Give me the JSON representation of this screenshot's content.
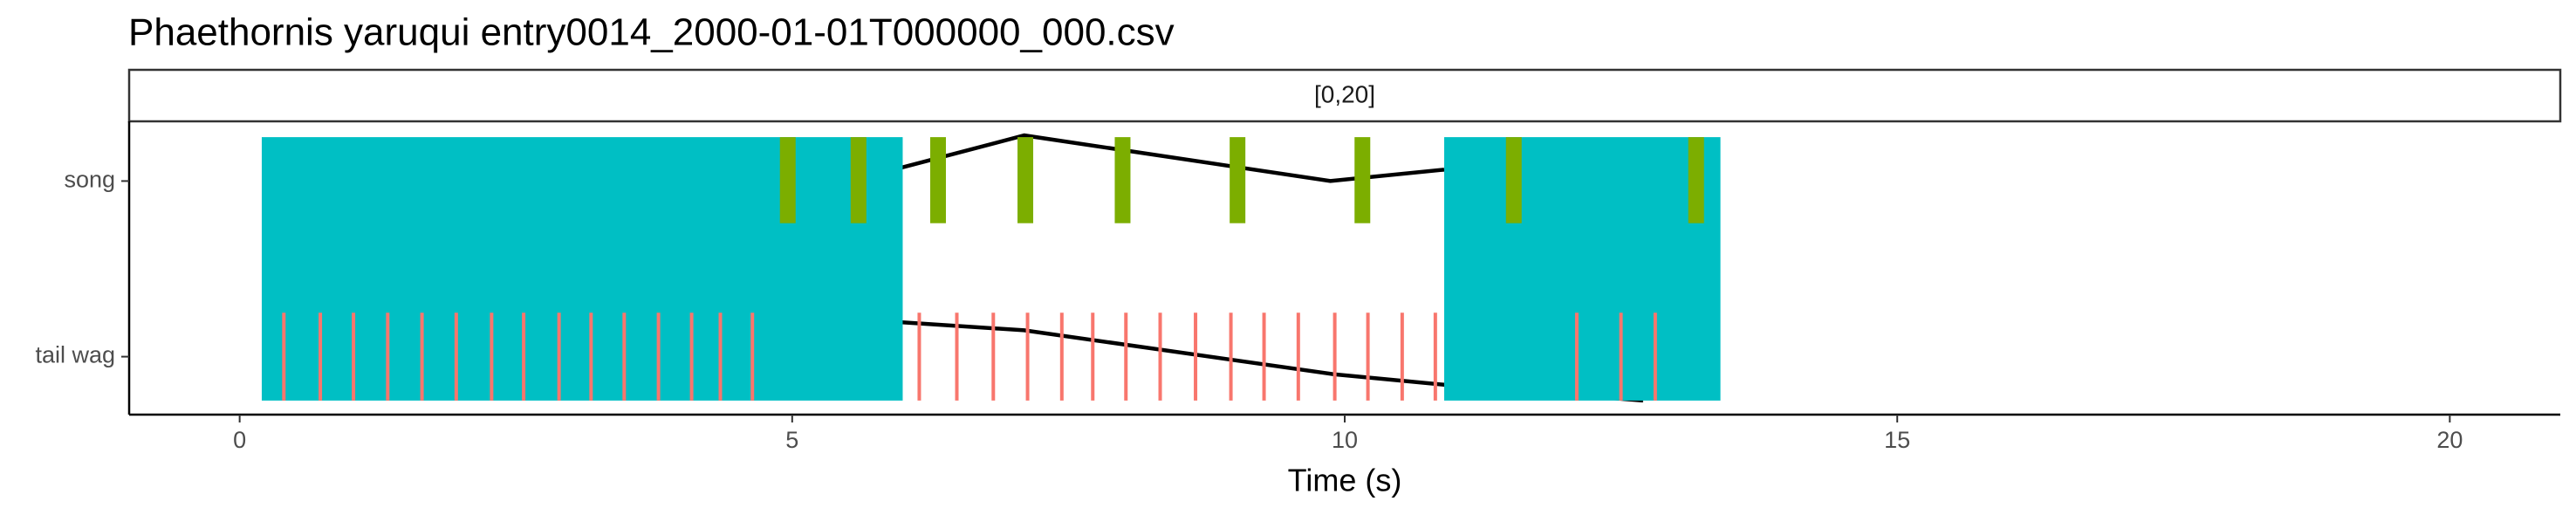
{
  "chart_data": {
    "type": "timeline",
    "title": "Phaethornis yaruqui   entry0014_2000-01-01T000000_000.csv",
    "strip_label": "[0,20]",
    "x_label": "Time (s)",
    "xlim": [
      -1,
      21
    ],
    "xticks": [
      0,
      5,
      10,
      15,
      20
    ],
    "categories": [
      "tail wag",
      "song"
    ],
    "ylim": [
      0.67,
      2.34
    ],
    "bouts": {
      "color": "#00BFC4",
      "starts": [
        0.2,
        10.9
      ],
      "ends": [
        6.0,
        13.4
      ]
    },
    "song_events": {
      "color": "#7CAE00",
      "x": [
        4.96,
        5.6,
        6.32,
        7.11,
        7.99,
        9.03,
        10.16,
        11.53,
        13.18
      ]
    },
    "tail_wag_events": {
      "color": "#F8766D",
      "x": [
        0.4,
        0.73,
        1.03,
        1.34,
        1.65,
        1.96,
        2.28,
        2.57,
        2.89,
        3.18,
        3.48,
        3.79,
        4.09,
        4.35,
        4.64,
        6.15,
        6.49,
        6.82,
        7.13,
        7.44,
        7.72,
        8.02,
        8.33,
        8.65,
        8.97,
        9.27,
        9.58,
        9.91,
        10.21,
        10.52,
        10.82,
        12.1,
        12.5,
        12.81
      ]
    },
    "lines": [
      {
        "color": "#000000",
        "x": [
          5.98,
          7.1,
          9.87,
          10.9
        ],
        "y": [
          2.075,
          2.26,
          2.0,
          2.065
        ]
      },
      {
        "color": "#000000",
        "x": [
          5.98,
          7.1,
          9.9,
          10.9,
          12.7
        ],
        "y": [
          1.196,
          1.15,
          0.9,
          0.84,
          0.75
        ]
      }
    ]
  }
}
